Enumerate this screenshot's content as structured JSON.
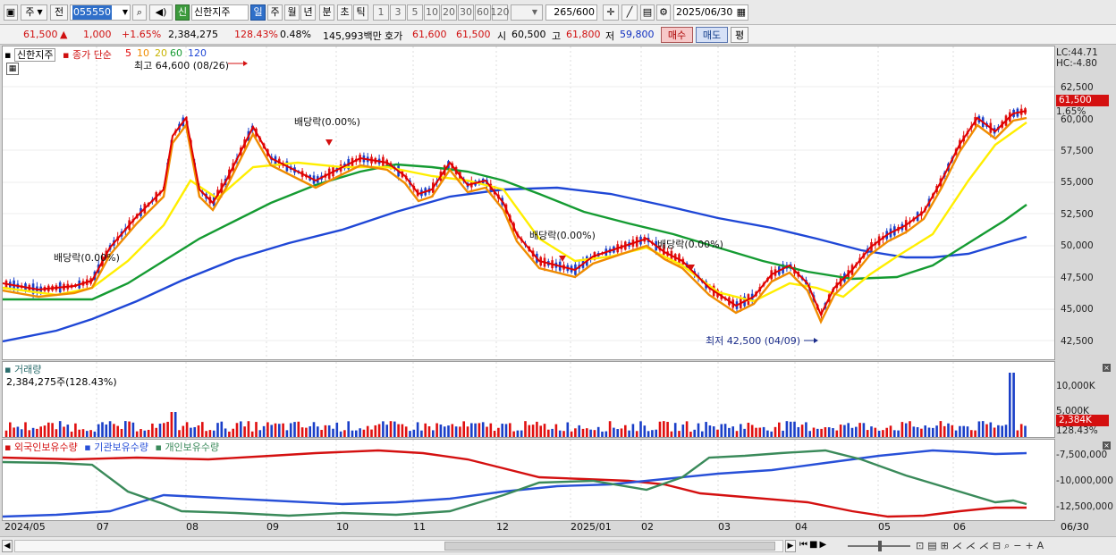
{
  "toolbar": {
    "market_type": "주",
    "prev_label": "전",
    "stock_code": "055550",
    "stock_badge": "신",
    "stock_name": "신한지주",
    "periods": [
      "일",
      "주",
      "월",
      "년",
      "분",
      "초",
      "틱"
    ],
    "intervals": [
      "1",
      "3",
      "5",
      "10",
      "20",
      "30",
      "60",
      "120"
    ],
    "count": "265",
    "count_total": "/600",
    "date": "2025/06/30"
  },
  "quote": {
    "price": "61,500",
    "arrow": "▲",
    "change": "1,000",
    "change_pct": "+1.65%",
    "volume": "2,384,275",
    "volume_ratio": "128.43%",
    "turnover": "0.48%",
    "trade_value": "145,993백만",
    "bid_label": "호가",
    "bid1": "61,600",
    "bid2": "61,500",
    "open_label": "시",
    "open": "60,500",
    "high_label": "고",
    "high": "61,800",
    "low_label": "저",
    "low": "59,800",
    "buy_button": "매수",
    "sell_button": "매도",
    "eval_button": "평"
  },
  "price_panel": {
    "stock_tag": "신한지주",
    "ma_title": "종가 단순",
    "ma_periods": [
      "5",
      "10",
      "20",
      "60",
      "120"
    ],
    "ma_colors": [
      "#e00000",
      "#f08c00",
      "#ffee00",
      "#159b32",
      "#1f47d6"
    ],
    "lc": "LC:44.71",
    "hc": "HC:-4.80",
    "y_ticks": [
      "62,500",
      "60,000",
      "57,500",
      "55,000",
      "52,500",
      "50,000",
      "47,500",
      "45,000",
      "42,500"
    ],
    "last_price_tag": "61,500",
    "last_pct_tag": "1.65%",
    "max_label": "최고 64,600 (08/26)",
    "min_label": "최저 42,500 (04/09)",
    "dividend_labels": [
      "배당락(0.00%)",
      "배당락(0.00%)",
      "배당락(0.00%)",
      "배당락(0.00%)"
    ]
  },
  "volume_panel": {
    "title": "거래량",
    "value": "2,384,275주(128.43%)",
    "y_ticks": [
      "10,000K",
      "5,000K"
    ],
    "last_tag": "2,384K",
    "last_pct": "128.43%"
  },
  "holding_panel": {
    "series": [
      "외국인보유수량",
      "기관보유수량",
      "개인보유수량"
    ],
    "colors": [
      "#d41010",
      "#2850d8",
      "#3a8a5a"
    ],
    "y_ticks": [
      "-7,500,000",
      "-10,000,000",
      "-12,500,000"
    ]
  },
  "x_axis": {
    "labels": [
      "2024/05",
      "07",
      "08",
      "09",
      "10",
      "11",
      "12",
      "2025/01",
      "02",
      "03",
      "04",
      "05",
      "06",
      "06/30"
    ]
  }
}
